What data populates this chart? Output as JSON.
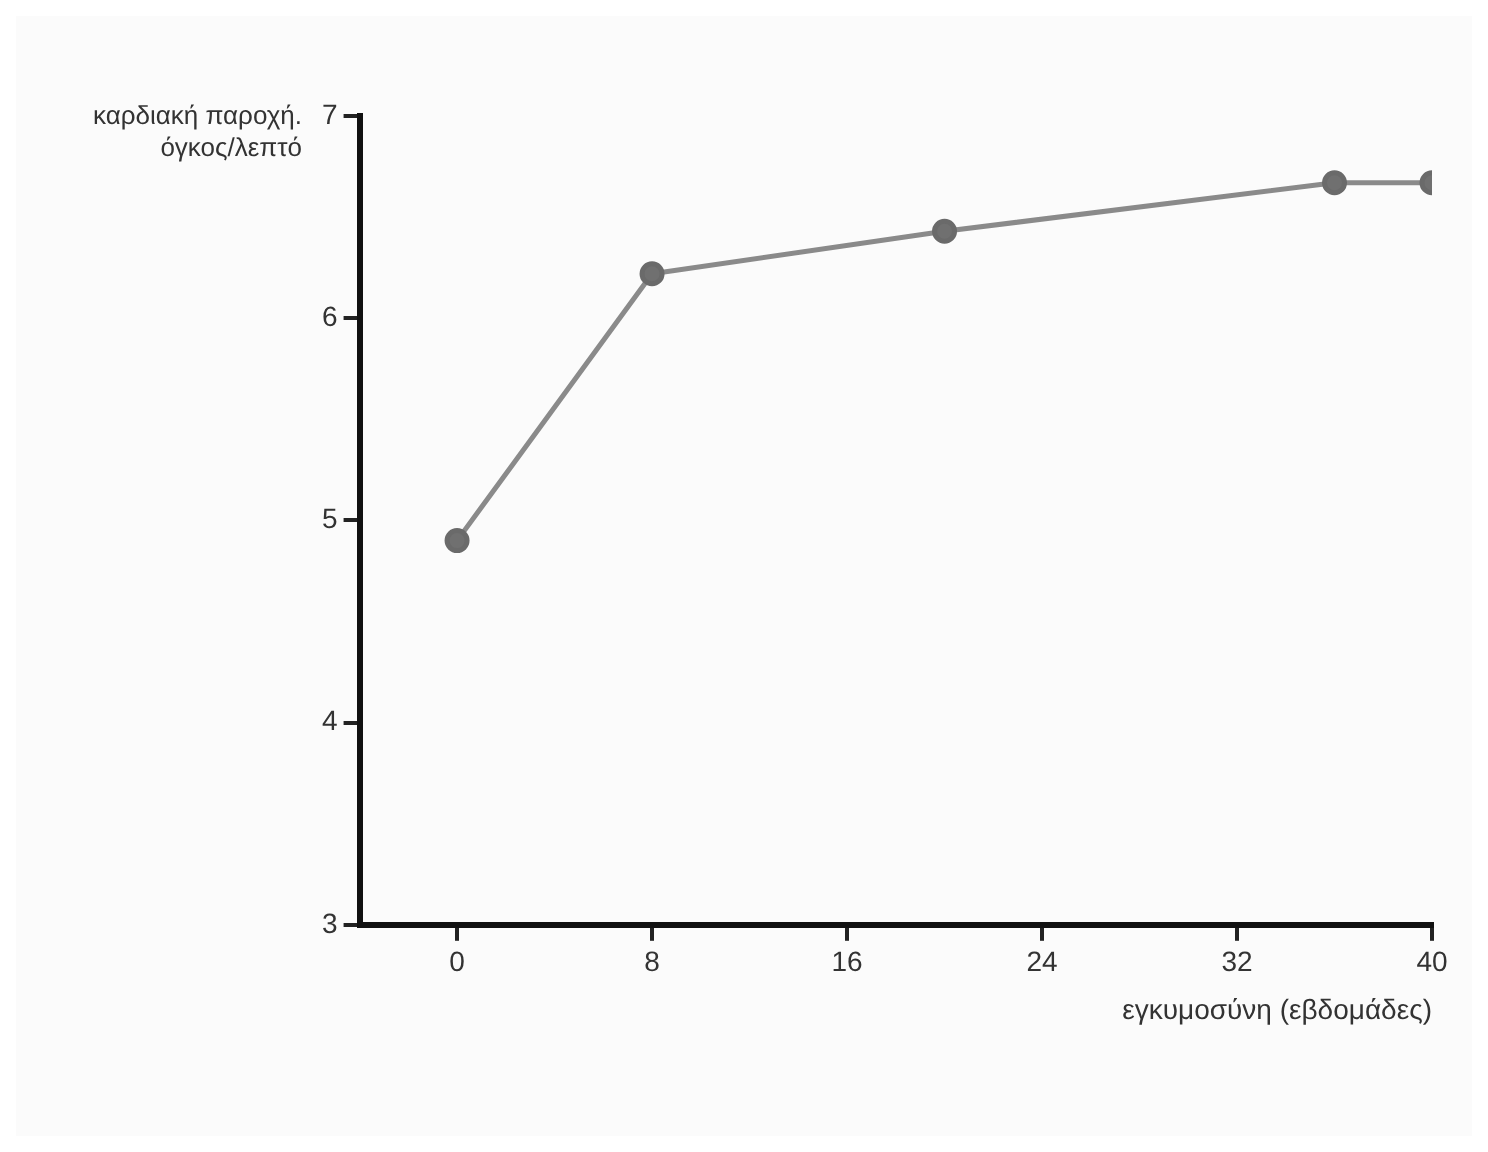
{
  "chart_data": {
    "type": "line",
    "xlabel": "εγκυμοσύνη (εβδομάδες)",
    "ylabel": "καρδιακή παροχή. όγκος/λεπτό",
    "x": [
      0,
      8,
      20,
      36,
      40
    ],
    "series": [
      {
        "color": "#8a8a8a",
        "values": [
          4.9,
          6.22,
          6.43,
          6.67,
          6.67
        ]
      }
    ],
    "xlim": [
      -4,
      40
    ],
    "xticks": [
      0,
      8,
      16,
      24,
      32,
      40
    ],
    "ylim": [
      3,
      7
    ],
    "yticks": [
      3,
      4,
      5,
      6,
      7
    ],
    "grid": false,
    "legend": false,
    "marker": "circle",
    "line_style": "solid"
  }
}
